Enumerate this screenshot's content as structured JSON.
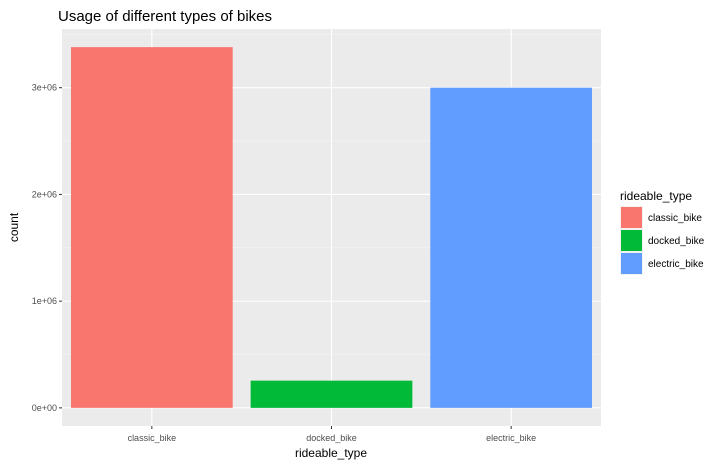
{
  "chart_data": {
    "type": "bar",
    "title": "Usage of different types of bikes",
    "xlabel": "rideable_type",
    "ylabel": "count",
    "categories": [
      "classic_bike",
      "docked_bike",
      "electric_bike"
    ],
    "values": [
      3380000,
      255000,
      3000000
    ],
    "ylim": [
      -170000,
      3550000
    ],
    "yticks": [
      0,
      1000000,
      2000000,
      3000000
    ],
    "ytick_labels": [
      "0e+00",
      "1e+06",
      "2e+06",
      "3e+06"
    ],
    "colors": [
      "#F8766D",
      "#00BA38",
      "#619CFF"
    ],
    "grid": true,
    "panel_background": "#EBEBEB",
    "legend": {
      "title": "rideable_type",
      "placement": "right",
      "entries": [
        "classic_bike",
        "docked_bike",
        "electric_bike"
      ]
    }
  }
}
